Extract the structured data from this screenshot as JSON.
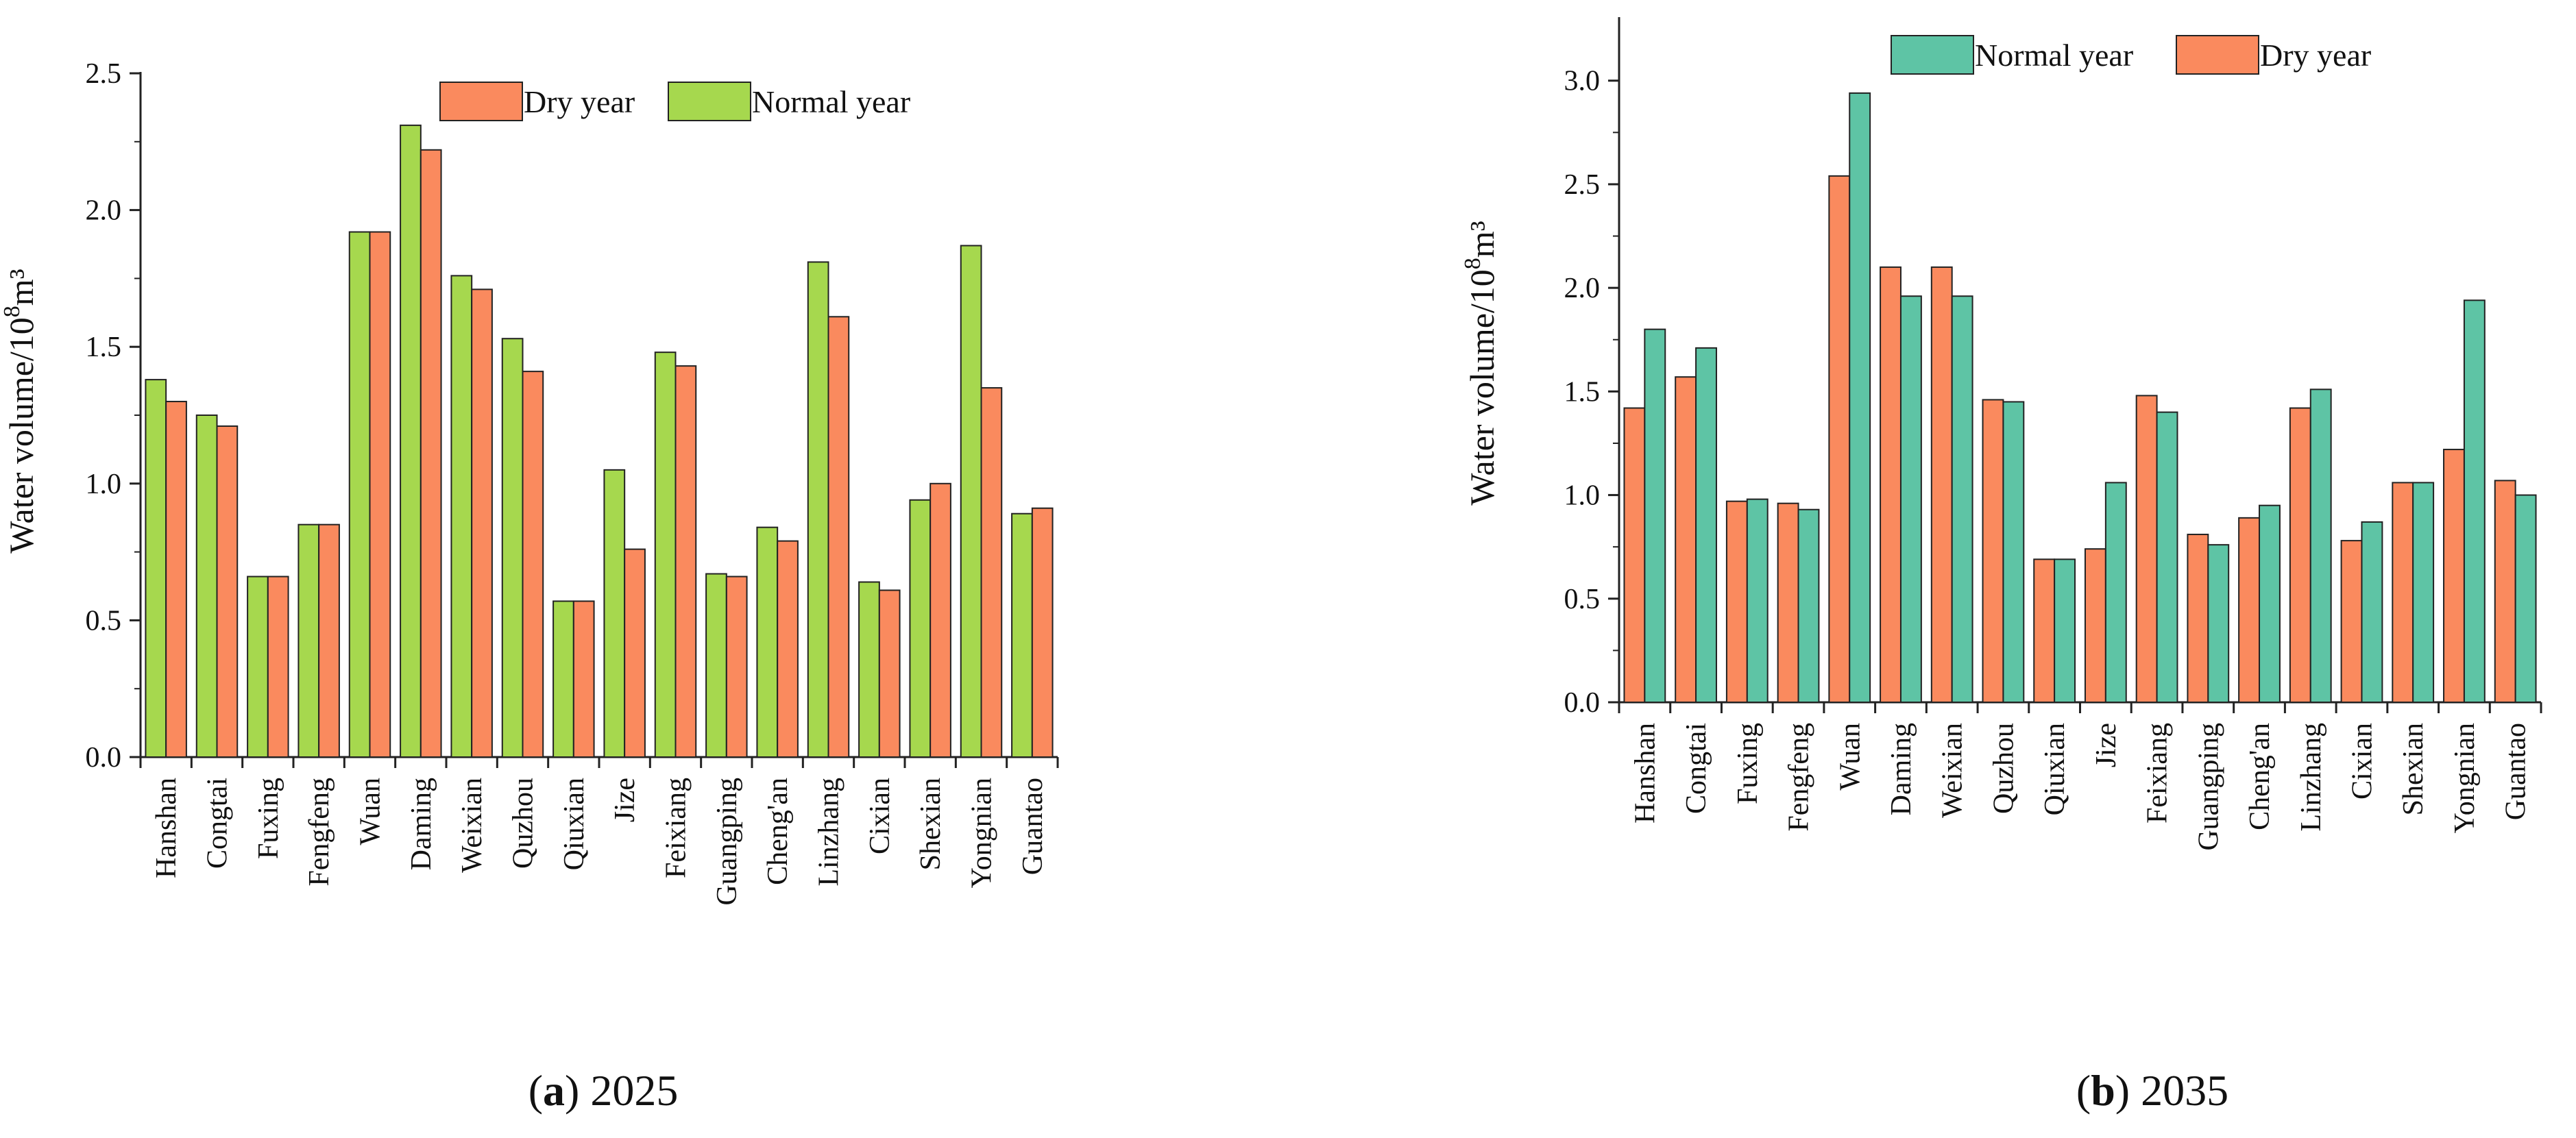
{
  "chart_data": [
    {
      "type": "bar",
      "panel_id": "a",
      "caption_letter": "a",
      "caption_year": "2025",
      "ylabel_text": "Water volume/10",
      "ylabel_exp": "8",
      "ylabel_unit": "m³",
      "ylim": [
        0,
        2.5
      ],
      "yticks": [
        "0.0",
        "0.5",
        "1.0",
        "1.5",
        "2.0",
        "2.5"
      ],
      "categories": [
        "Hanshan",
        "Congtai",
        "Fuxing",
        "Fengfeng",
        "Wuan",
        "Daming",
        "Weixian",
        "Quzhou",
        "Qiuxian",
        "Jize",
        "Feixiang",
        "Guangping",
        "Cheng'an",
        "Linzhang",
        "Cixian",
        "Shexian",
        "Yongnian",
        "Guantao"
      ],
      "legend_order": [
        1,
        0
      ],
      "series": [
        {
          "name": "Normal year",
          "color": "#a6d84e",
          "values": [
            1.38,
            1.25,
            0.66,
            0.85,
            1.92,
            2.31,
            1.76,
            1.53,
            0.57,
            1.05,
            1.48,
            0.67,
            0.84,
            1.81,
            0.64,
            0.94,
            1.87,
            0.89
          ]
        },
        {
          "name": "Dry year",
          "color": "#fa8a5e",
          "values": [
            1.3,
            1.21,
            0.66,
            0.85,
            1.92,
            2.22,
            1.71,
            1.41,
            0.57,
            0.76,
            1.43,
            0.66,
            0.79,
            1.61,
            0.61,
            1.0,
            1.35,
            0.91
          ]
        }
      ]
    },
    {
      "type": "bar",
      "panel_id": "b",
      "caption_letter": "b",
      "caption_year": "2035",
      "ylabel_text": "Water volume/10",
      "ylabel_exp": "8",
      "ylabel_unit": "m³",
      "ylim": [
        0,
        3.3
      ],
      "yticks": [
        "0.0",
        "0.5",
        "1.0",
        "1.5",
        "2.0",
        "2.5",
        "3.0"
      ],
      "categories": [
        "Hanshan",
        "Congtai",
        "Fuxing",
        "Fengfeng",
        "Wuan",
        "Daming",
        "Weixian",
        "Quzhou",
        "Qiuxian",
        "Jize",
        "Feixiang",
        "Guangping",
        "Cheng'an",
        "Linzhang",
        "Cixian",
        "Shexian",
        "Yongnian",
        "Guantao"
      ],
      "legend_order": [
        1,
        0
      ],
      "series": [
        {
          "name": "Dry year",
          "color": "#fa8a5e",
          "values": [
            1.42,
            1.57,
            0.97,
            0.96,
            2.54,
            2.1,
            2.1,
            1.46,
            0.69,
            0.74,
            1.48,
            0.81,
            0.89,
            1.42,
            0.78,
            1.06,
            1.22,
            1.07
          ]
        },
        {
          "name": "Normal year",
          "color": "#5ec4a5",
          "values": [
            1.8,
            1.71,
            0.98,
            0.93,
            2.94,
            1.96,
            1.96,
            1.45,
            0.69,
            1.06,
            1.4,
            0.76,
            0.95,
            1.51,
            0.87,
            1.06,
            1.94,
            1.0
          ]
        }
      ]
    }
  ]
}
